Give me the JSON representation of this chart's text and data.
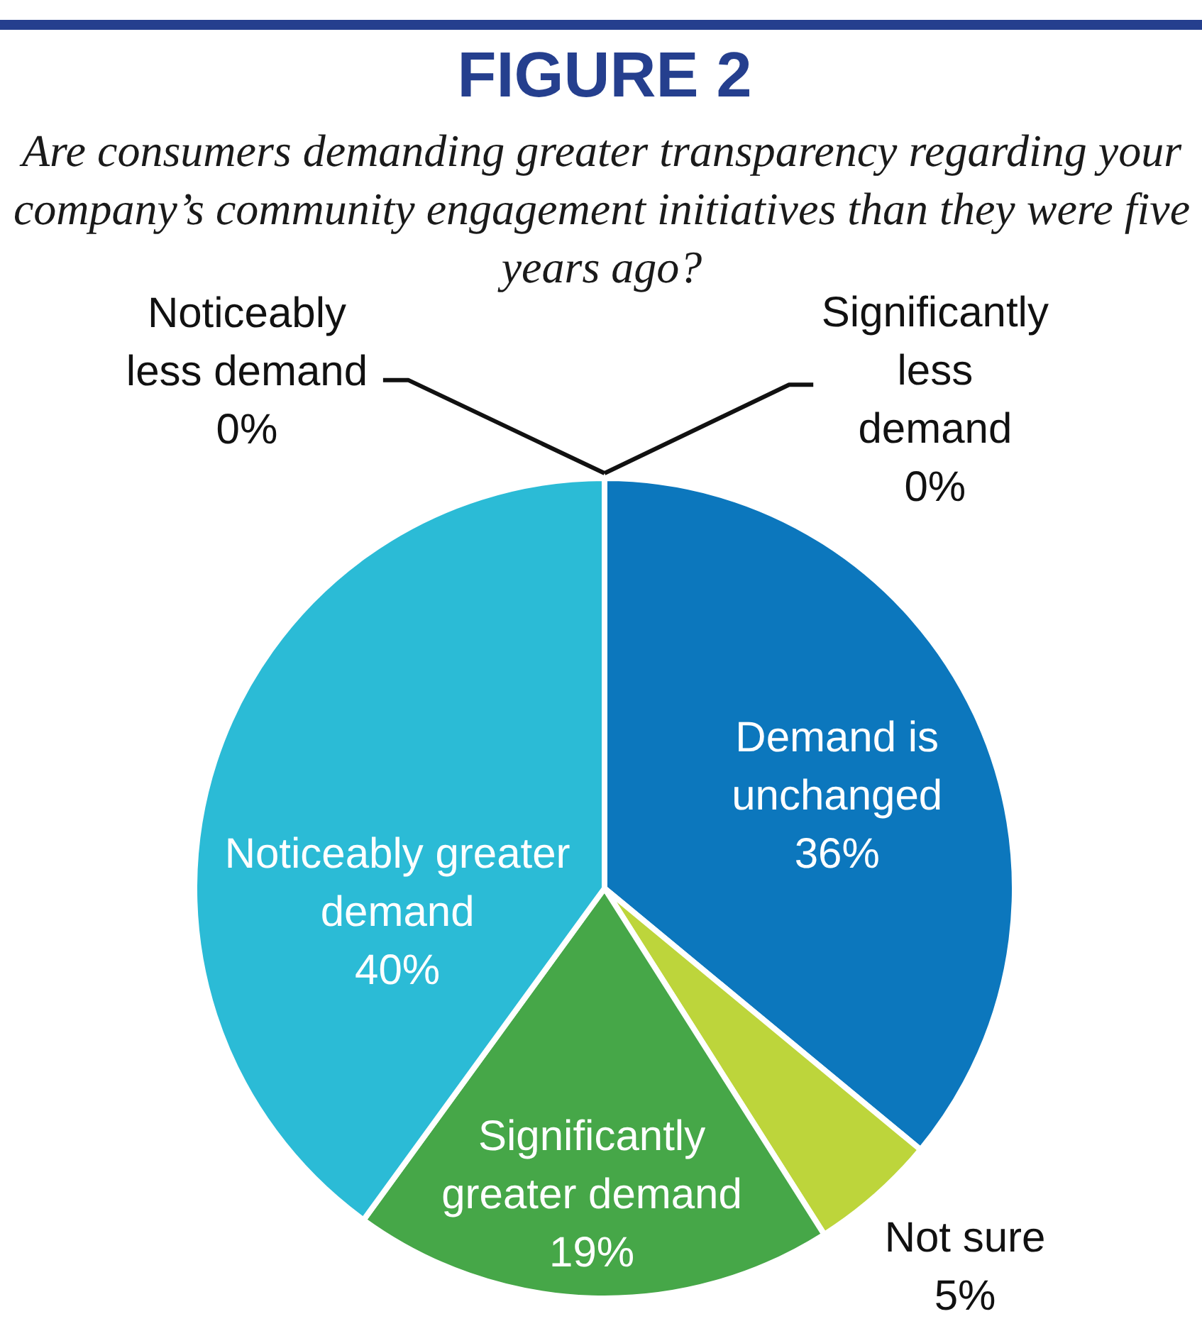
{
  "chart_data": {
    "type": "pie",
    "title": "FIGURE 2",
    "subtitle": "Are consumers demanding greater transparency regarding your company’s community engagement initiatives than they were five years ago?",
    "categories": [
      "Significantly less demand",
      "Demand is unchanged",
      "Not sure",
      "Significantly greater demand",
      "Noticeably greater demand",
      "Noticeably less demand"
    ],
    "values": [
      0,
      36,
      5,
      19,
      40,
      0
    ],
    "colors": [
      null,
      "#0c77bd",
      "#bdd53b",
      "#46a748",
      "#2bbbd6",
      null
    ],
    "value_labels": [
      "0%",
      "36%",
      "5%",
      "19%",
      "40%",
      "0%"
    ]
  }
}
